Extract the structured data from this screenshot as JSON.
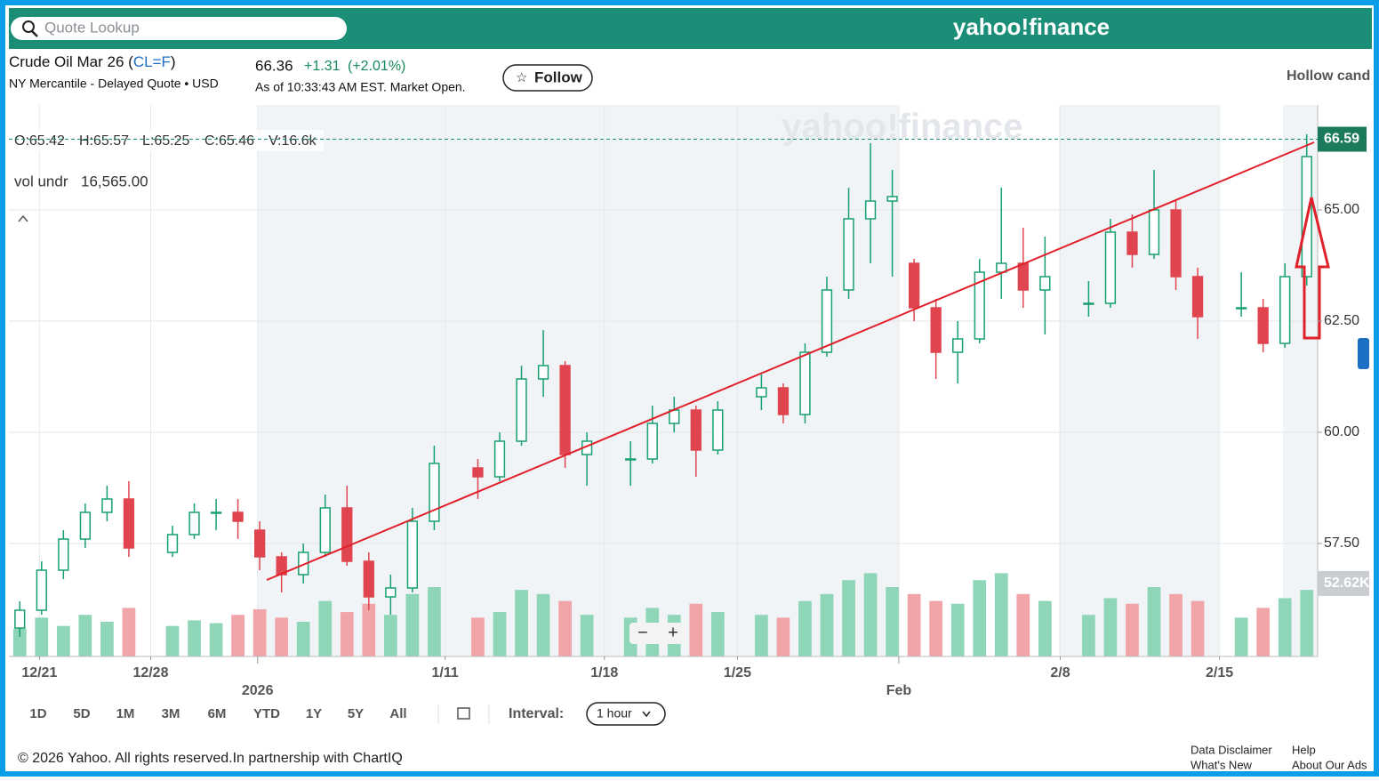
{
  "header": {
    "search_placeholder": "Quote Lookup",
    "logo": "yahoo!finance"
  },
  "quote": {
    "title_prefix": "Crude Oil Mar 26 (",
    "symbol": "CL=F",
    "title_suffix": ")",
    "exchange": "NY Mercantile - Delayed Quote • USD",
    "price": "66.36",
    "change": "+1.31",
    "change_pct": "(+2.01%)",
    "timestamp": "As of 10:33:43 AM EST. Market Open.",
    "follow": "Follow",
    "chart_style": "Hollow cand"
  },
  "legend": {
    "open": "O:65.42",
    "high": "H:65.57",
    "low": "L:65.25",
    "close": "C:65.46",
    "volume": "V:16.6k"
  },
  "study": {
    "name": "vol undr",
    "value": "16,565.00"
  },
  "controls": {
    "ranges": [
      "1D",
      "5D",
      "1M",
      "3M",
      "6M",
      "YTD",
      "1Y",
      "5Y",
      "All"
    ],
    "interval_label": "Interval:",
    "interval": "1 hour"
  },
  "footer": {
    "copyright": "© 2026 Yahoo. All rights reserved.In partnership with ChartIQ",
    "links": [
      "Data Disclaimer",
      "Help",
      "What's New",
      "About Our Ads"
    ]
  },
  "chart_data": {
    "type": "candlestick",
    "x": [
      0.5,
      1.5,
      2.5,
      3.5,
      4.5,
      5.5,
      6.5,
      7.5,
      8.5,
      9.5,
      10.5,
      11.5,
      12.5,
      13.5,
      14.5,
      15.5,
      16.5,
      17.5,
      18.5,
      19.5,
      20.5,
      21.5,
      22.5,
      23.5,
      24.5,
      25.5,
      26.5,
      27.5,
      28.5,
      29.5,
      30.5,
      31.5,
      32.5,
      33.5,
      34.5,
      35.5,
      36.5,
      37.5,
      38.5,
      39.5,
      40.5,
      41.5,
      42.5,
      43.5,
      44.5,
      45.5,
      46.5,
      47.5,
      48.5,
      49.5,
      50.5,
      51.5,
      52.5,
      53.5,
      54.5,
      55.5,
      56.5,
      57.5,
      58.5,
      59.5
    ],
    "open": [
      55.6,
      56.0,
      56.9,
      57.6,
      58.2,
      58.5,
      null,
      57.3,
      57.7,
      58.2,
      58.2,
      57.8,
      57.2,
      56.8,
      57.3,
      58.3,
      57.1,
      56.3,
      56.5,
      58.0,
      null,
      59.2,
      59.0,
      59.8,
      61.2,
      61.5,
      59.5,
      null,
      59.4,
      59.4,
      60.2,
      60.5,
      59.6,
      null,
      60.8,
      61.0,
      60.4,
      61.8,
      63.2,
      64.8,
      65.2,
      63.8,
      62.8,
      61.8,
      62.1,
      63.6,
      63.8,
      63.2,
      null,
      62.9,
      62.9,
      64.5,
      64.0,
      65.0,
      63.5,
      null,
      62.8,
      62.8,
      62.0,
      63.5
    ],
    "high": [
      56.2,
      57.1,
      57.8,
      58.4,
      58.8,
      58.9,
      null,
      57.9,
      58.4,
      58.5,
      58.5,
      58.0,
      57.3,
      57.5,
      58.6,
      58.8,
      57.3,
      56.8,
      58.3,
      59.7,
      null,
      59.4,
      60.0,
      61.5,
      62.3,
      61.6,
      60.0,
      null,
      59.8,
      60.6,
      60.8,
      60.6,
      60.7,
      null,
      61.3,
      61.1,
      62.0,
      63.5,
      65.5,
      66.5,
      65.9,
      63.9,
      63.0,
      62.5,
      63.9,
      65.5,
      64.6,
      64.4,
      null,
      63.4,
      64.8,
      64.9,
      65.9,
      65.2,
      63.7,
      null,
      63.6,
      63.0,
      63.8,
      66.7
    ],
    "low": [
      55.4,
      55.9,
      56.7,
      57.4,
      58.0,
      57.2,
      null,
      57.2,
      57.6,
      57.8,
      57.6,
      56.9,
      56.4,
      56.6,
      57.2,
      57.0,
      56.0,
      55.9,
      56.4,
      57.8,
      null,
      58.5,
      58.9,
      59.7,
      60.8,
      59.2,
      58.8,
      null,
      58.8,
      59.3,
      60.0,
      59.0,
      59.5,
      null,
      60.5,
      60.2,
      60.2,
      61.7,
      63.0,
      63.8,
      63.5,
      62.5,
      61.2,
      61.1,
      62.0,
      63.0,
      62.8,
      62.2,
      null,
      62.6,
      62.8,
      63.7,
      63.9,
      63.2,
      62.1,
      null,
      62.6,
      61.8,
      61.9,
      63.3
    ],
    "close": [
      56.0,
      56.9,
      57.6,
      58.2,
      58.5,
      57.4,
      null,
      57.7,
      58.2,
      58.2,
      58.0,
      57.2,
      56.8,
      57.3,
      58.3,
      57.1,
      56.3,
      56.5,
      58.0,
      59.3,
      null,
      59.0,
      59.8,
      61.2,
      61.5,
      59.5,
      59.8,
      null,
      59.4,
      60.2,
      60.5,
      59.6,
      60.5,
      null,
      61.0,
      60.4,
      61.8,
      63.2,
      64.8,
      65.2,
      65.3,
      62.8,
      61.8,
      62.1,
      63.6,
      63.8,
      63.2,
      63.5,
      null,
      62.9,
      64.5,
      64.0,
      65.0,
      63.5,
      62.6,
      null,
      62.8,
      62.0,
      63.5,
      66.2
    ],
    "volume": [
      20,
      28,
      22,
      30,
      25,
      35,
      null,
      22,
      26,
      24,
      30,
      34,
      28,
      25,
      40,
      32,
      38,
      30,
      45,
      50,
      null,
      28,
      32,
      48,
      45,
      40,
      30,
      null,
      28,
      35,
      30,
      38,
      32,
      null,
      30,
      28,
      40,
      45,
      55,
      60,
      50,
      45,
      40,
      38,
      55,
      60,
      45,
      40,
      null,
      30,
      42,
      38,
      50,
      45,
      40,
      null,
      28,
      35,
      42,
      48
    ],
    "xlim": [
      0,
      60
    ],
    "xticks": [
      {
        "value": 1.4,
        "label": "12/21"
      },
      {
        "value": 6.5,
        "label": "12/28"
      },
      {
        "value": 11.4,
        "label": "2026"
      },
      {
        "value": 20,
        "label": "1/11"
      },
      {
        "value": 27.3,
        "label": "1/18"
      },
      {
        "value": 33.4,
        "label": "1/25"
      },
      {
        "value": 40.8,
        "label": "Feb"
      },
      {
        "value": 48.2,
        "label": "2/8"
      },
      {
        "value": 55.5,
        "label": "2/15"
      }
    ],
    "ylim": [
      54.96,
      67.36
    ],
    "yticks": [
      {
        "value": 57.5,
        "label": "57.50"
      },
      {
        "value": 60,
        "label": "60.00"
      },
      {
        "value": 62.5,
        "label": "62.50"
      },
      {
        "value": 65,
        "label": "65.00"
      }
    ],
    "volume_ylim": [
      0,
      100
    ],
    "last_price": 66.59,
    "volume_label": {
      "value": 52.62,
      "label": "52.62K"
    },
    "grid": true,
    "colors": {
      "up": "#16a06f",
      "down": "#e0454f",
      "volume_up": "#8fd6b8",
      "volume_down": "#f2a5a9"
    }
  }
}
